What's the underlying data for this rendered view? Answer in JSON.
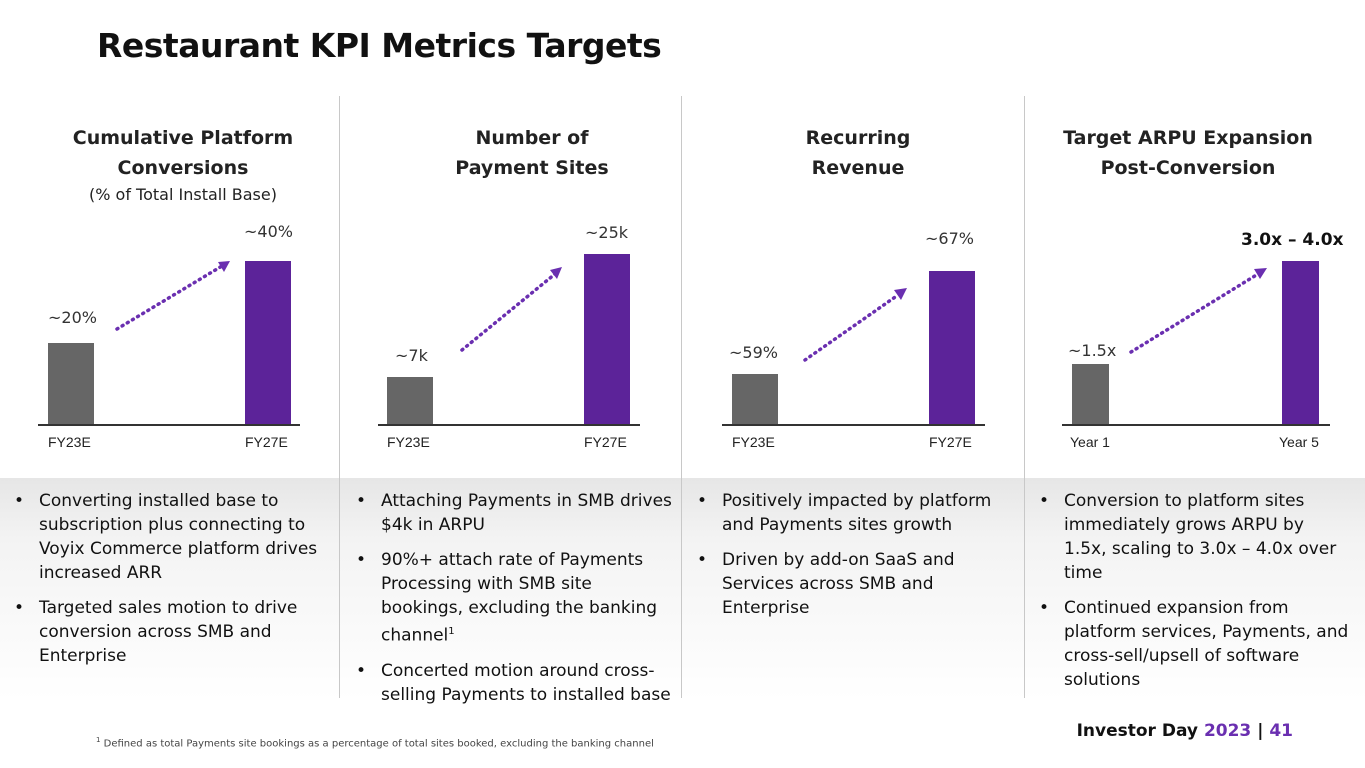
{
  "title": "Restaurant KPI Metrics Targets",
  "colors": {
    "gray_bar": "#666666",
    "purple_bar": "#5c2399",
    "arrow": "#6a2fb0",
    "accent": "#6a2fb0"
  },
  "columns": [
    {
      "title_line1": "Cumulative Platform",
      "title_line2": "Conversions",
      "subtitle": "(% of Total Install Base)",
      "chart_data": {
        "type": "bar",
        "categories": [
          "FY23E",
          "FY27E"
        ],
        "values": [
          20,
          40
        ],
        "labels": [
          "~20%",
          "~40%"
        ],
        "unit": "%"
      },
      "bullets": [
        "Converting installed base to subscription plus connecting to Voyix Commerce platform drives increased ARR",
        "Targeted sales motion to drive conversion across SMB and Enterprise"
      ]
    },
    {
      "title_line1": "Number of",
      "title_line2": "Payment Sites",
      "subtitle": "",
      "chart_data": {
        "type": "bar",
        "categories": [
          "FY23E",
          "FY27E"
        ],
        "values": [
          7,
          25
        ],
        "labels": [
          "~7k",
          "~25k"
        ],
        "unit": "k"
      },
      "bullets": [
        "Attaching Payments in SMB drives $4k in ARPU",
        "90%+ attach rate of Payments Processing with SMB site bookings, excluding the banking channel",
        "Concerted motion around cross-selling Payments to installed base"
      ],
      "footnote_marker": "1"
    },
    {
      "title_line1": "Recurring",
      "title_line2": "Revenue",
      "subtitle": "",
      "chart_data": {
        "type": "bar",
        "categories": [
          "FY23E",
          "FY27E"
        ],
        "values": [
          59,
          67
        ],
        "labels": [
          "~59%",
          "~67%"
        ],
        "unit": "%"
      },
      "bullets": [
        "Positively impacted by platform and Payments sites growth",
        "Driven by add-on SaaS and Services across SMB and Enterprise"
      ]
    },
    {
      "title_line1": "Target ARPU Expansion",
      "title_line2": "Post-Conversion",
      "subtitle": "",
      "chart_data": {
        "type": "bar",
        "categories": [
          "Year 1",
          "Year 5"
        ],
        "values": [
          1.5,
          3.5
        ],
        "labels": [
          "~1.5x",
          "3.0x – 4.0x"
        ],
        "unit": "x"
      },
      "bullets": [
        "Conversion to platform sites immediately grows ARPU by 1.5x, scaling to 3.0x – 4.0x over time",
        "Continued expansion from platform services, Payments, and cross-sell/upsell of software solutions"
      ]
    }
  ],
  "footnote": {
    "marker": "1",
    "text": "Defined as total Payments site bookings as a percentage of total sites booked, excluding the banking channel"
  },
  "footer": {
    "event": "Investor Day",
    "year": "2023",
    "separator": "|",
    "page_number": "41"
  }
}
